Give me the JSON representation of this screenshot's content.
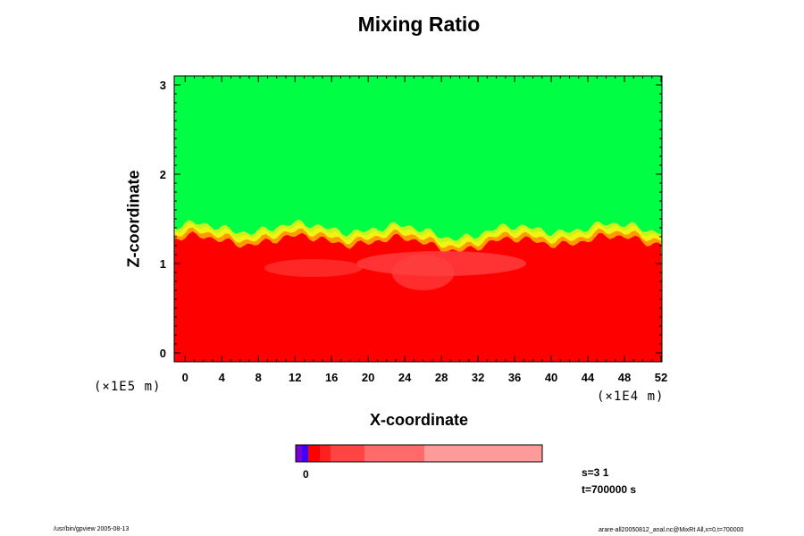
{
  "chart_data": {
    "type": "heatmap",
    "title": "Mixing Ratio",
    "xlabel": "X-coordinate",
    "ylabel": "Z-coordinate",
    "x_unit": "(×1E4 m)",
    "y_unit": "(×1E5 m)",
    "xlim": [
      -1.2,
      52.1
    ],
    "ylim": [
      -0.1,
      3.1
    ],
    "x_ticks": [
      "0",
      "4",
      "8",
      "12",
      "16",
      "20",
      "24",
      "28",
      "32",
      "36",
      "40",
      "44",
      "48",
      "52"
    ],
    "y_ticks": [
      "0",
      "1",
      "2",
      "3"
    ],
    "colorbar": {
      "labels": [
        "0"
      ]
    },
    "annotations": [
      "s=3 1",
      "t=700000 s"
    ]
  },
  "footer": {
    "left": "/usr/bin/gpview 2005-08-13",
    "right": "arare-all20050812_anal.nc@MixRt All,x=0,t=700000"
  },
  "colors": {
    "green": "#00ff44",
    "yellow_green": "#c6f51e",
    "yellow": "#f3f313",
    "orange": "#ff9b00",
    "red": "#ff0000",
    "light_red": "#ff4040"
  }
}
